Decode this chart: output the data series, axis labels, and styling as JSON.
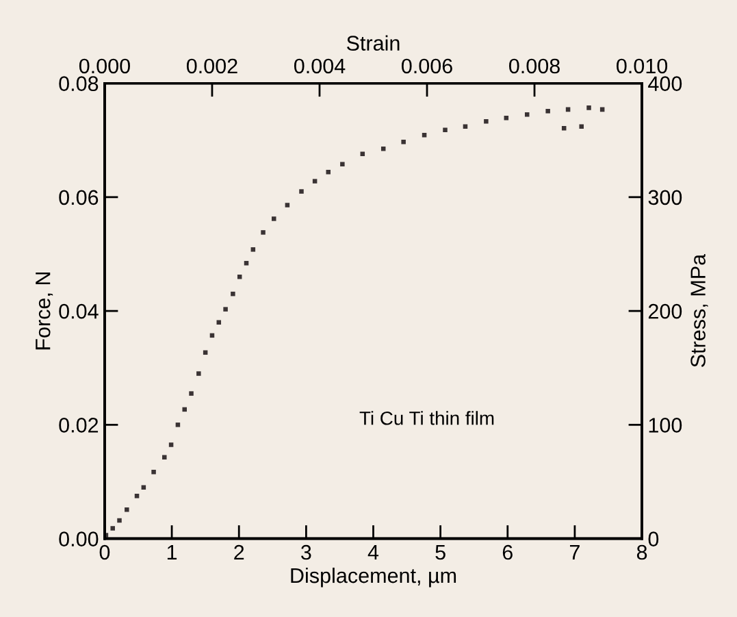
{
  "chart_data": {
    "type": "scatter",
    "xlabel": "Displacement, µm",
    "ylabel": "Force, N",
    "x2label": "Strain",
    "y2label": "Stress, MPa",
    "annotations": [
      "Ti Cu Ti thin film"
    ],
    "x": [
      0.02,
      0.12,
      0.22,
      0.33,
      0.48,
      0.58,
      0.73,
      0.89,
      0.99,
      1.09,
      1.19,
      1.29,
      1.4,
      1.5,
      1.6,
      1.7,
      1.8,
      1.91,
      2.01,
      2.11,
      2.21,
      2.36,
      2.52,
      2.72,
      2.93,
      3.13,
      3.33,
      3.54,
      3.84,
      4.15,
      4.45,
      4.76,
      5.07,
      5.37,
      5.68,
      5.98,
      6.29,
      6.6,
      6.84,
      6.9,
      7.1,
      7.21,
      7.41
    ],
    "series": [
      {
        "color": "#3a3334",
        "values": [
          0.0006,
          0.0018,
          0.0032,
          0.0051,
          0.0075,
          0.009,
          0.0117,
          0.0143,
          0.0165,
          0.02,
          0.0227,
          0.0255,
          0.029,
          0.0327,
          0.0357,
          0.038,
          0.0403,
          0.043,
          0.046,
          0.0484,
          0.0508,
          0.0538,
          0.0562,
          0.0586,
          0.061,
          0.0628,
          0.0644,
          0.0658,
          0.0676,
          0.0685,
          0.0697,
          0.0709,
          0.0718,
          0.0724,
          0.0733,
          0.0739,
          0.0745,
          0.0751,
          0.0721,
          0.0754,
          0.0724,
          0.0757,
          0.0754
        ]
      }
    ],
    "marker": "square",
    "xlim": [
      0,
      8
    ],
    "xticks": [
      0,
      1,
      2,
      3,
      4,
      5,
      6,
      7,
      8
    ],
    "ylim": [
      0,
      0.08
    ],
    "yticks": [
      {
        "value": 0,
        "label": "0.00"
      },
      {
        "value": 0.02,
        "label": "0.02"
      },
      {
        "value": 0.04,
        "label": "0.04"
      },
      {
        "value": 0.06,
        "label": "0.06"
      },
      {
        "value": 0.08,
        "label": "0.08"
      }
    ],
    "x2lim": [
      0,
      0.01
    ],
    "x2ticks": [
      {
        "value": 0,
        "label": "0.000"
      },
      {
        "value": 0.002,
        "label": "0.002"
      },
      {
        "value": 0.004,
        "label": "0.004"
      },
      {
        "value": 0.006,
        "label": "0.006"
      },
      {
        "value": 0.008,
        "label": "0.008"
      },
      {
        "value": 0.01,
        "label": "0.010"
      }
    ],
    "y2lim": [
      0,
      400
    ],
    "y2ticks": [
      0,
      100,
      200,
      300,
      400
    ],
    "grid": false,
    "legend": false
  }
}
